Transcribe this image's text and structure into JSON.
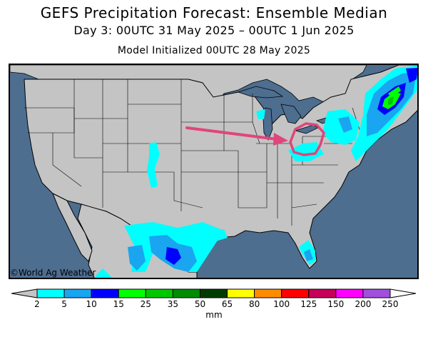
{
  "header": {
    "title": "GEFS Precipitation Forecast: Ensemble Median",
    "subtitle": "Day 3: 00UTC 31 May 2025 – 00UTC 1 Jun 2025",
    "init": "Model Initialized 00UTC 28 May 2025"
  },
  "map": {
    "credit": "©World Ag Weather",
    "colors": {
      "ocean": "#4e6e90",
      "land": "#c4c4c4",
      "outline": "#000000",
      "highlight": "#e0457b"
    }
  },
  "legend": {
    "unit": "mm",
    "ticks": [
      "2",
      "5",
      "10",
      "15",
      "25",
      "35",
      "50",
      "65",
      "80",
      "100",
      "125",
      "150",
      "200",
      "250"
    ],
    "colors": [
      "#00ffff",
      "#1aa5f0",
      "#0000ff",
      "#00ff00",
      "#00c800",
      "#008c00",
      "#003c00",
      "#ffff00",
      "#ff8c00",
      "#ff0000",
      "#c8005a",
      "#ff00ff",
      "#a050dc"
    ]
  }
}
